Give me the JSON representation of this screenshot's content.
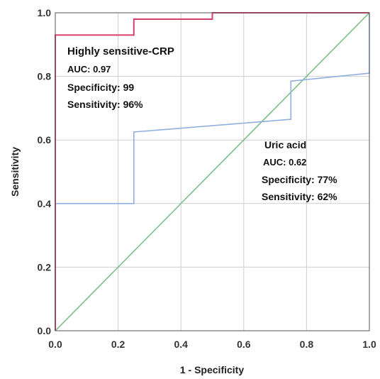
{
  "chart_data": {
    "type": "line",
    "xlabel": "1 - Specificity",
    "ylabel": "Sensitivity",
    "xlim": [
      0.0,
      1.0
    ],
    "ylim": [
      0.0,
      1.0
    ],
    "xticks": [
      "0.0",
      "0.2",
      "0.4",
      "0.6",
      "0.8",
      "1.0"
    ],
    "yticks": [
      "0.0",
      "0.2",
      "0.4",
      "0.6",
      "0.8",
      "1.0"
    ],
    "grid": true,
    "series": [
      {
        "key": "crp",
        "color": "#d8406a",
        "x": [
          0.0,
          0.0,
          0.25,
          0.25,
          0.5,
          0.5,
          1.0
        ],
        "y": [
          0.0,
          0.93,
          0.93,
          0.98,
          0.98,
          1.0,
          1.0
        ]
      },
      {
        "key": "uric",
        "color": "#8fb0e0",
        "x": [
          0.0,
          0.25,
          0.25,
          0.75,
          0.75,
          1.0,
          1.0
        ],
        "y": [
          0.4,
          0.4,
          0.625,
          0.665,
          0.785,
          0.81,
          1.0
        ]
      },
      {
        "key": "reference",
        "color": "#7cc08c",
        "x": [
          0.0,
          1.0
        ],
        "y": [
          0.0,
          1.0
        ]
      }
    ],
    "annotations": {
      "crp": {
        "title": "Highly sensitive-CRP",
        "auc": "AUC: 0.97",
        "specificity": "Specificity: 99",
        "sensitivity": "Sensitivity: 96%"
      },
      "uric": {
        "title": "Uric acid",
        "auc": "AUC: 0.62",
        "specificity": "Specificity: 77%",
        "sensitivity": "Sensitivity: 62%"
      }
    }
  }
}
